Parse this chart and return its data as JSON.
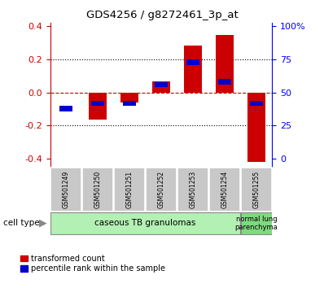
{
  "title": "GDS4256 / g8272461_3p_at",
  "samples": [
    "GSM501249",
    "GSM501250",
    "GSM501251",
    "GSM501252",
    "GSM501253",
    "GSM501254",
    "GSM501255"
  ],
  "transformed_count": [
    0.0,
    -0.165,
    -0.06,
    0.07,
    0.285,
    0.35,
    -0.42
  ],
  "percentile_rank_raw": [
    38,
    42,
    42,
    56,
    73,
    58,
    42
  ],
  "ylim": [
    -0.45,
    0.42
  ],
  "yticks_left": [
    -0.4,
    -0.2,
    0.0,
    0.2,
    0.4
  ],
  "yticks_right": [
    0,
    25,
    50,
    75,
    100
  ],
  "bar_color": "#cc0000",
  "dot_color": "#0000cc",
  "n_group1": 6,
  "n_group2": 1,
  "group1_label": "caseous TB granulomas",
  "group2_label": "normal lung\nparenchyma",
  "group1_color": "#b3f0b3",
  "group2_color": "#80d980",
  "tick_label_bg": "#c8c8c8",
  "legend_red_label": "transformed count",
  "legend_blue_label": "percentile rank within the sample"
}
